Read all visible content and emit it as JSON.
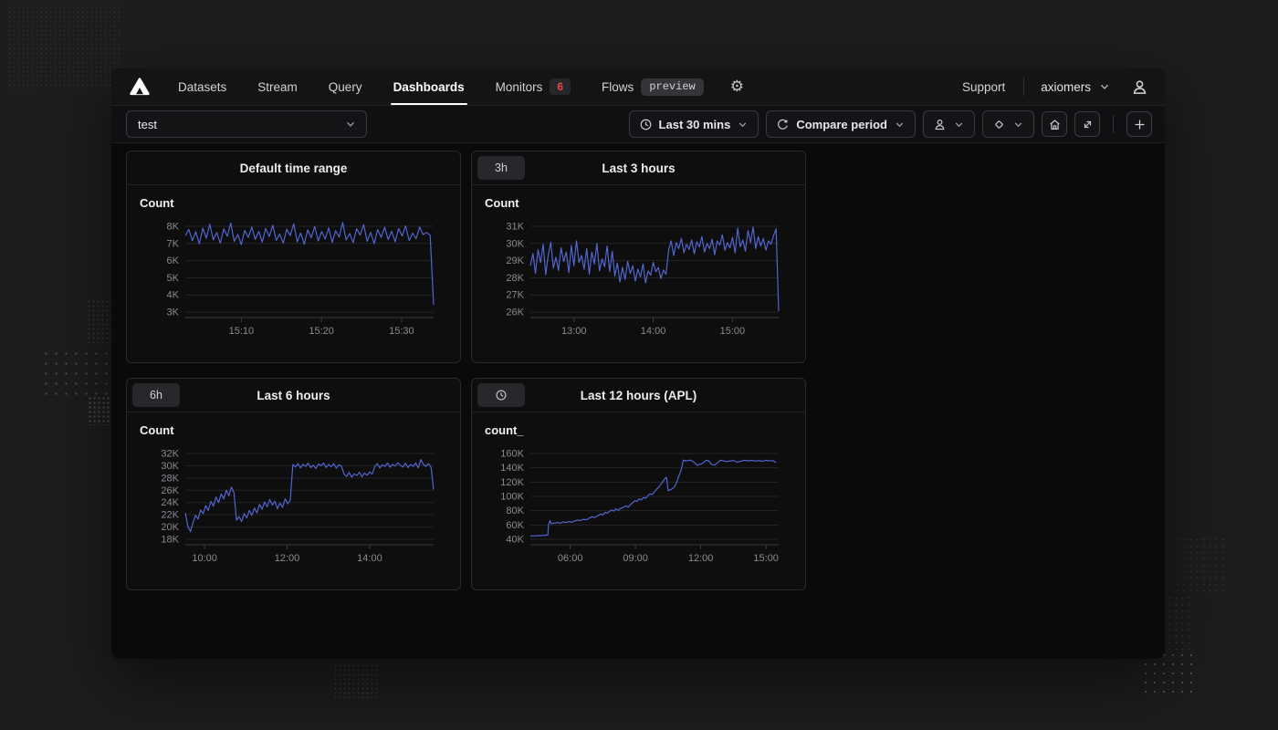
{
  "nav": {
    "items": [
      {
        "label": "Datasets"
      },
      {
        "label": "Stream"
      },
      {
        "label": "Query"
      },
      {
        "label": "Dashboards",
        "active": true
      },
      {
        "label": "Monitors",
        "badge": "6"
      },
      {
        "label": "Flows",
        "tag": "preview"
      }
    ],
    "support_label": "Support",
    "org_name": "axiomers"
  },
  "toolbar": {
    "dashboard_select_value": "test",
    "time_range_label": "Last 30 mins",
    "compare_label": "Compare period"
  },
  "colors": {
    "accent_line": "#5468d6",
    "alert_red": "#e5484d",
    "grid_line": "#242428",
    "axis_line": "#3a3a3f",
    "tick_text": "#8a8a91"
  },
  "chart_data": [
    {
      "type": "line",
      "title": "Default time range",
      "badge": null,
      "series_label": "Count",
      "ytick_labels": [
        "8K",
        "7K",
        "6K",
        "5K",
        "4K",
        "3K"
      ],
      "ymax": 8000,
      "ymin": 3000,
      "t_start": 903,
      "t_end": 934,
      "xticks": [
        {
          "label": "15:10",
          "t": 910
        },
        {
          "label": "15:20",
          "t": 920
        },
        {
          "label": "15:30",
          "t": 930
        }
      ],
      "values": [
        7450,
        7820,
        7160,
        7680,
        6980,
        7890,
        7310,
        8120,
        7220,
        7640,
        7010,
        7850,
        7430,
        8190,
        7120,
        7520,
        6930,
        7760,
        7350,
        7960,
        7240,
        7700,
        7080,
        7880,
        7400,
        8060,
        7180,
        7560,
        7020,
        7830,
        7460,
        8150,
        7090,
        7610,
        6960,
        7790,
        7330,
        7990,
        7150,
        7690,
        7270,
        7910,
        7060,
        7740,
        7380,
        8230,
        7210,
        7580,
        7040,
        7860,
        7490,
        8100,
        7130,
        7650,
        6990,
        7810,
        7360,
        7940,
        7230,
        7720,
        7100,
        7870,
        7440,
        8020,
        7170,
        7600,
        7280,
        7950,
        7520,
        7640,
        7480,
        3420
      ]
    },
    {
      "type": "line",
      "title": "Last 3 hours",
      "badge": {
        "type": "text",
        "label": "3h"
      },
      "series_label": "Count",
      "ytick_labels": [
        "31K",
        "30K",
        "29K",
        "28K",
        "27K",
        "26K"
      ],
      "ymax": 31000,
      "ymin": 26000,
      "t_start": 747,
      "t_end": 935,
      "xticks": [
        {
          "label": "13:00",
          "t": 780
        },
        {
          "label": "14:00",
          "t": 840
        },
        {
          "label": "15:00",
          "t": 900
        }
      ],
      "values": [
        28700,
        29420,
        28260,
        29640,
        28880,
        29960,
        28180,
        29340,
        30080,
        28560,
        29200,
        28420,
        29760,
        28940,
        29500,
        28300,
        29880,
        28700,
        30150,
        28900,
        29300,
        28500,
        29700,
        28200,
        29500,
        28800,
        30000,
        28400,
        29100,
        28650,
        29850,
        28350,
        29550,
        28100,
        28850,
        27750,
        28600,
        27900,
        28950,
        28250,
        28700,
        27800,
        28500,
        28050,
        28800,
        27700,
        28400,
        28150,
        28900,
        28350,
        28600,
        27950,
        28450,
        28200,
        29600,
        30150,
        29300,
        30050,
        29700,
        30300,
        29450,
        29950,
        29650,
        30200,
        29400,
        30100,
        29800,
        30400,
        29500,
        30000,
        29700,
        30250,
        29350,
        30150,
        29900,
        30500,
        29600,
        30050,
        29750,
        30350,
        29450,
        30900,
        29800,
        30200,
        29550,
        30750,
        30050,
        30950,
        29700,
        30400,
        29850,
        30300,
        29600,
        30150,
        29950,
        30450,
        30850,
        26050
      ]
    },
    {
      "type": "line",
      "title": "Last 6 hours",
      "badge": {
        "type": "text",
        "label": "6h"
      },
      "series_label": "Count",
      "ytick_labels": [
        "32K",
        "30K",
        "28K",
        "26K",
        "24K",
        "22K",
        "20K",
        "18K"
      ],
      "ymax": 32000,
      "ymin": 18000,
      "t_start": 572,
      "t_end": 933,
      "xticks": [
        {
          "label": "10:00",
          "t": 600
        },
        {
          "label": "12:00",
          "t": 720
        },
        {
          "label": "14:00",
          "t": 840
        }
      ],
      "values": [
        22300,
        20100,
        19300,
        20700,
        21900,
        21300,
        22800,
        22200,
        23500,
        22700,
        24200,
        23400,
        24900,
        24000,
        25400,
        24600,
        26000,
        25100,
        26500,
        25600,
        21100,
        21700,
        20900,
        22200,
        21500,
        22700,
        21900,
        23100,
        22300,
        23700,
        22900,
        24100,
        23300,
        24500,
        23600,
        24200,
        23000,
        23900,
        23200,
        24600,
        23800,
        24400,
        30200,
        29800,
        30350,
        29650,
        30250,
        29900,
        30400,
        29700,
        30100,
        29550,
        30300,
        30000,
        30450,
        29700,
        30200,
        29850,
        30350,
        29600,
        30150,
        29950,
        28650,
        28250,
        28900,
        28150,
        28700,
        28400,
        28950,
        28200,
        28800,
        28450,
        29000,
        28650,
        29850,
        30350,
        29650,
        30150,
        29900,
        30450,
        29750,
        30250,
        29950,
        30500,
        30100,
        29800,
        30400,
        29700,
        30250,
        29900,
        30450,
        29650,
        31000,
        30200,
        29900,
        30350,
        29750,
        26100
      ]
    },
    {
      "type": "line",
      "title": "Last 12 hours (APL)",
      "badge": {
        "type": "icon",
        "icon": "clock-icon"
      },
      "series_label": "count_",
      "ytick_labels": [
        "160K",
        "140K",
        "120K",
        "100K",
        "80K",
        "60K",
        "40K"
      ],
      "ymax": 160000,
      "ymin": 40000,
      "t_start": 250,
      "t_end": 935,
      "xticks": [
        {
          "label": "06:00",
          "t": 360
        },
        {
          "label": "09:00",
          "t": 540
        },
        {
          "label": "12:00",
          "t": 720
        },
        {
          "label": "15:00",
          "t": 900
        }
      ],
      "points": [
        [
          250,
          44600
        ],
        [
          262,
          44900
        ],
        [
          274,
          45100
        ],
        [
          286,
          45400
        ],
        [
          298,
          46000
        ],
        [
          300,
          60200
        ],
        [
          304,
          66000
        ],
        [
          308,
          61800
        ],
        [
          316,
          62600
        ],
        [
          324,
          63400
        ],
        [
          332,
          62600
        ],
        [
          340,
          64300
        ],
        [
          348,
          63400
        ],
        [
          356,
          64800
        ],
        [
          364,
          63900
        ],
        [
          372,
          65500
        ],
        [
          380,
          67000
        ],
        [
          388,
          66200
        ],
        [
          396,
          68000
        ],
        [
          404,
          67200
        ],
        [
          412,
          69500
        ],
        [
          420,
          71500
        ],
        [
          428,
          70500
        ],
        [
          436,
          73000
        ],
        [
          444,
          75500
        ],
        [
          450,
          74000
        ],
        [
          456,
          77500
        ],
        [
          462,
          76500
        ],
        [
          468,
          79000
        ],
        [
          474,
          81000
        ],
        [
          480,
          79500
        ],
        [
          486,
          82500
        ],
        [
          492,
          80500
        ],
        [
          498,
          83000
        ],
        [
          506,
          84500
        ],
        [
          514,
          87000
        ],
        [
          520,
          85000
        ],
        [
          526,
          88500
        ],
        [
          532,
          91000
        ],
        [
          538,
          94000
        ],
        [
          544,
          93000
        ],
        [
          550,
          96500
        ],
        [
          556,
          95000
        ],
        [
          562,
          98500
        ],
        [
          568,
          97500
        ],
        [
          574,
          101000
        ],
        [
          580,
          103500
        ],
        [
          586,
          102500
        ],
        [
          592,
          106000
        ],
        [
          598,
          110000
        ],
        [
          604,
          113000
        ],
        [
          610,
          117000
        ],
        [
          616,
          121000
        ],
        [
          622,
          125500
        ],
        [
          626,
          126500
        ],
        [
          630,
          108000
        ],
        [
          636,
          109000
        ],
        [
          642,
          111000
        ],
        [
          648,
          113500
        ],
        [
          654,
          120000
        ],
        [
          660,
          129000
        ],
        [
          666,
          137000
        ],
        [
          672,
          150800
        ],
        [
          680,
          149500
        ],
        [
          690,
          150800
        ],
        [
          700,
          148500
        ],
        [
          710,
          143500
        ],
        [
          718,
          145000
        ],
        [
          726,
          146500
        ],
        [
          734,
          150300
        ],
        [
          742,
          149800
        ],
        [
          750,
          144500
        ],
        [
          758,
          143800
        ],
        [
          766,
          147000
        ],
        [
          774,
          150500
        ],
        [
          782,
          150000
        ],
        [
          790,
          148800
        ],
        [
          800,
          149500
        ],
        [
          810,
          150200
        ],
        [
          820,
          148000
        ],
        [
          830,
          149000
        ],
        [
          840,
          150500
        ],
        [
          850,
          149800
        ],
        [
          860,
          150300
        ],
        [
          870,
          149500
        ],
        [
          880,
          150000
        ],
        [
          890,
          149200
        ],
        [
          900,
          150400
        ],
        [
          910,
          149600
        ],
        [
          920,
          150100
        ],
        [
          928,
          147200
        ]
      ]
    }
  ]
}
